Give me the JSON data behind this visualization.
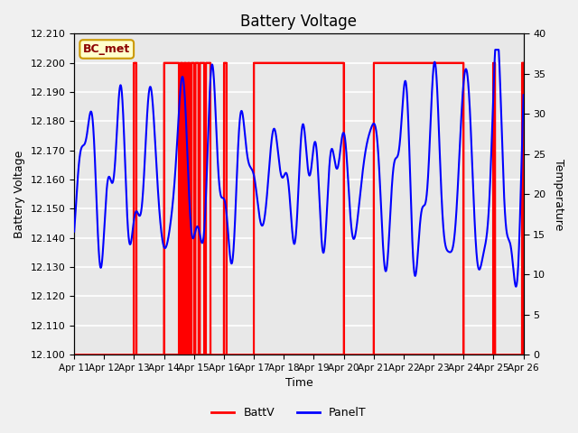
{
  "title": "Battery Voltage",
  "ylabel_left": "Battery Voltage",
  "ylabel_right": "Temperature",
  "xlabel": "Time",
  "xlim": [
    0,
    15
  ],
  "ylim_left": [
    12.1,
    12.21
  ],
  "ylim_right": [
    0,
    40
  ],
  "annotation_text": "BC_met",
  "annotation_bg": "#ffffcc",
  "annotation_border": "#cc9900",
  "annotation_text_color": "#8b0000",
  "plot_bg": "#e8e8e8",
  "grid_color": "white",
  "tick_labels": [
    "Apr 11",
    "Apr 12",
    "Apr 13",
    "Apr 14",
    "Apr 15",
    "Apr 16",
    "Apr 17",
    "Apr 18",
    "Apr 19",
    "Apr 20",
    "Apr 21",
    "Apr 22",
    "Apr 23",
    "Apr 24",
    "Apr 25",
    "Apr 26"
  ],
  "red_segments": [
    [
      2.0,
      2.08
    ],
    [
      3.0,
      3.5
    ],
    [
      3.55,
      3.62
    ],
    [
      3.67,
      3.74
    ],
    [
      3.79,
      3.86
    ],
    [
      3.91,
      4.0
    ],
    [
      4.05,
      4.15
    ],
    [
      4.2,
      4.35
    ],
    [
      4.4,
      4.55
    ],
    [
      5.0,
      5.08
    ],
    [
      6.0,
      9.0
    ],
    [
      10.0,
      13.0
    ],
    [
      14.0,
      14.05
    ],
    [
      14.95,
      15.0
    ]
  ],
  "panel_t_color": "blue",
  "batt_v_color": "red",
  "fig_width": 6.4,
  "fig_height": 4.8,
  "dpi": 100
}
